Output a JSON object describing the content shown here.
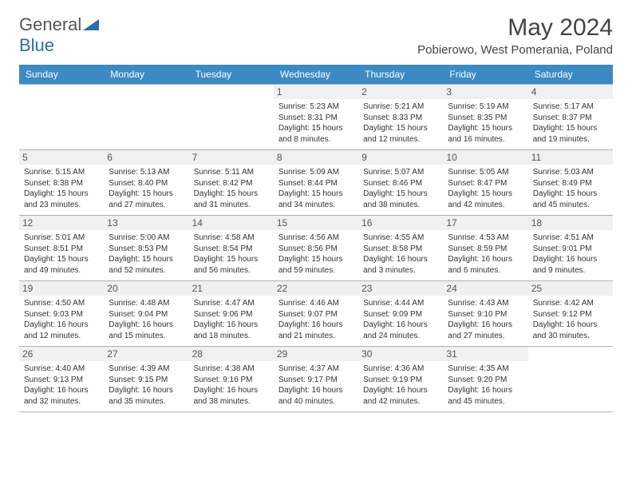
{
  "brand": {
    "part1": "General",
    "part2": "Blue"
  },
  "title": "May 2024",
  "location": "Pobierowo, West Pomerania, Poland",
  "colors": {
    "header_bg": "#3b8ac4",
    "header_fg": "#ffffff",
    "daynum_bg": "#eef0f2",
    "border": "#b0b0b0",
    "brand_gray": "#555555",
    "brand_blue": "#2f6fa7"
  },
  "weekdays": [
    "Sunday",
    "Monday",
    "Tuesday",
    "Wednesday",
    "Thursday",
    "Friday",
    "Saturday"
  ],
  "weeks": [
    [
      null,
      null,
      null,
      {
        "n": "1",
        "sr": "5:23 AM",
        "ss": "8:31 PM",
        "dl": "15 hours and 8 minutes."
      },
      {
        "n": "2",
        "sr": "5:21 AM",
        "ss": "8:33 PM",
        "dl": "15 hours and 12 minutes."
      },
      {
        "n": "3",
        "sr": "5:19 AM",
        "ss": "8:35 PM",
        "dl": "15 hours and 16 minutes."
      },
      {
        "n": "4",
        "sr": "5:17 AM",
        "ss": "8:37 PM",
        "dl": "15 hours and 19 minutes."
      }
    ],
    [
      {
        "n": "5",
        "sr": "5:15 AM",
        "ss": "8:38 PM",
        "dl": "15 hours and 23 minutes."
      },
      {
        "n": "6",
        "sr": "5:13 AM",
        "ss": "8:40 PM",
        "dl": "15 hours and 27 minutes."
      },
      {
        "n": "7",
        "sr": "5:11 AM",
        "ss": "8:42 PM",
        "dl": "15 hours and 31 minutes."
      },
      {
        "n": "8",
        "sr": "5:09 AM",
        "ss": "8:44 PM",
        "dl": "15 hours and 34 minutes."
      },
      {
        "n": "9",
        "sr": "5:07 AM",
        "ss": "8:46 PM",
        "dl": "15 hours and 38 minutes."
      },
      {
        "n": "10",
        "sr": "5:05 AM",
        "ss": "8:47 PM",
        "dl": "15 hours and 42 minutes."
      },
      {
        "n": "11",
        "sr": "5:03 AM",
        "ss": "8:49 PM",
        "dl": "15 hours and 45 minutes."
      }
    ],
    [
      {
        "n": "12",
        "sr": "5:01 AM",
        "ss": "8:51 PM",
        "dl": "15 hours and 49 minutes."
      },
      {
        "n": "13",
        "sr": "5:00 AM",
        "ss": "8:53 PM",
        "dl": "15 hours and 52 minutes."
      },
      {
        "n": "14",
        "sr": "4:58 AM",
        "ss": "8:54 PM",
        "dl": "15 hours and 56 minutes."
      },
      {
        "n": "15",
        "sr": "4:56 AM",
        "ss": "8:56 PM",
        "dl": "15 hours and 59 minutes."
      },
      {
        "n": "16",
        "sr": "4:55 AM",
        "ss": "8:58 PM",
        "dl": "16 hours and 3 minutes."
      },
      {
        "n": "17",
        "sr": "4:53 AM",
        "ss": "8:59 PM",
        "dl": "16 hours and 6 minutes."
      },
      {
        "n": "18",
        "sr": "4:51 AM",
        "ss": "9:01 PM",
        "dl": "16 hours and 9 minutes."
      }
    ],
    [
      {
        "n": "19",
        "sr": "4:50 AM",
        "ss": "9:03 PM",
        "dl": "16 hours and 12 minutes."
      },
      {
        "n": "20",
        "sr": "4:48 AM",
        "ss": "9:04 PM",
        "dl": "16 hours and 15 minutes."
      },
      {
        "n": "21",
        "sr": "4:47 AM",
        "ss": "9:06 PM",
        "dl": "16 hours and 18 minutes."
      },
      {
        "n": "22",
        "sr": "4:46 AM",
        "ss": "9:07 PM",
        "dl": "16 hours and 21 minutes."
      },
      {
        "n": "23",
        "sr": "4:44 AM",
        "ss": "9:09 PM",
        "dl": "16 hours and 24 minutes."
      },
      {
        "n": "24",
        "sr": "4:43 AM",
        "ss": "9:10 PM",
        "dl": "16 hours and 27 minutes."
      },
      {
        "n": "25",
        "sr": "4:42 AM",
        "ss": "9:12 PM",
        "dl": "16 hours and 30 minutes."
      }
    ],
    [
      {
        "n": "26",
        "sr": "4:40 AM",
        "ss": "9:13 PM",
        "dl": "16 hours and 32 minutes."
      },
      {
        "n": "27",
        "sr": "4:39 AM",
        "ss": "9:15 PM",
        "dl": "16 hours and 35 minutes."
      },
      {
        "n": "28",
        "sr": "4:38 AM",
        "ss": "9:16 PM",
        "dl": "16 hours and 38 minutes."
      },
      {
        "n": "29",
        "sr": "4:37 AM",
        "ss": "9:17 PM",
        "dl": "16 hours and 40 minutes."
      },
      {
        "n": "30",
        "sr": "4:36 AM",
        "ss": "9:19 PM",
        "dl": "16 hours and 42 minutes."
      },
      {
        "n": "31",
        "sr": "4:35 AM",
        "ss": "9:20 PM",
        "dl": "16 hours and 45 minutes."
      },
      null
    ]
  ],
  "labels": {
    "sunrise": "Sunrise:",
    "sunset": "Sunset:",
    "daylight": "Daylight:"
  }
}
